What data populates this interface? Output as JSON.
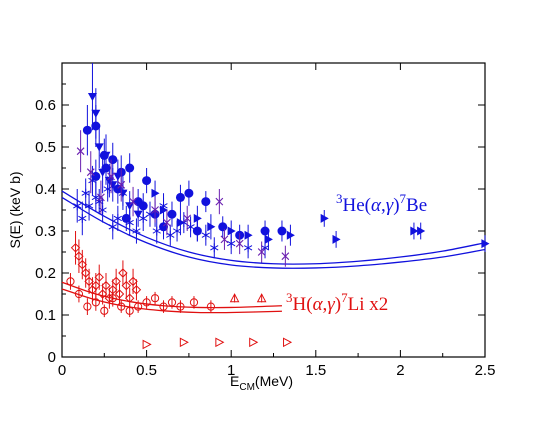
{
  "chart_data": {
    "type": "scatter",
    "xlabel_main": "E",
    "xlabel_sub": "CM",
    "xlabel_unit": "(MeV)",
    "ylabel": "S(E) (keV b)",
    "xlim": [
      0,
      2.5
    ],
    "ylim": [
      0,
      0.7
    ],
    "xticks": [
      "0",
      "0.5",
      "1",
      "1.5",
      "2",
      "2.5"
    ],
    "yticks": [
      "0",
      "0.1",
      "0.2",
      "0.3",
      "0.4",
      "0.5",
      "0.6"
    ],
    "grid": false,
    "colors": {
      "be7": "#1111dd",
      "li7": "#e01010",
      "be7_alt": "#6a1fb0"
    },
    "annotations": {
      "be7": {
        "sup1": "3",
        "pre": "He(",
        "alpha": "α",
        "comma": ",",
        "gamma": "γ",
        "close": ")",
        "sup2": "7",
        "post": "Be"
      },
      "li7": {
        "sup1": "3",
        "pre": "H(",
        "alpha": "α",
        "comma": ",",
        "gamma": "γ",
        "close": ")",
        "sup2": "7",
        "post": "Li  x2"
      }
    },
    "curves": [
      {
        "reaction": "be7",
        "x": [
          0,
          0.25,
          0.5,
          0.75,
          1.0,
          1.25,
          1.5,
          1.75,
          2.0,
          2.25,
          2.5
        ],
        "y": [
          0.395,
          0.335,
          0.285,
          0.25,
          0.23,
          0.222,
          0.222,
          0.228,
          0.238,
          0.252,
          0.272
        ]
      },
      {
        "reaction": "be7",
        "x": [
          0,
          0.25,
          0.5,
          0.75,
          1.0,
          1.25,
          1.5,
          1.75,
          2.0,
          2.25,
          2.5
        ],
        "y": [
          0.38,
          0.32,
          0.272,
          0.238,
          0.219,
          0.212,
          0.212,
          0.217,
          0.226,
          0.238,
          0.256
        ]
      },
      {
        "reaction": "li7",
        "x": [
          0.0,
          0.2,
          0.4,
          0.6,
          0.8,
          1.0,
          1.3
        ],
        "y": [
          0.178,
          0.15,
          0.132,
          0.122,
          0.118,
          0.118,
          0.122
        ]
      },
      {
        "reaction": "li7",
        "x": [
          0.0,
          0.2,
          0.4,
          0.6,
          0.8,
          1.0,
          1.3
        ],
        "y": [
          0.162,
          0.136,
          0.119,
          0.11,
          0.106,
          0.106,
          0.109
        ]
      }
    ],
    "series": [
      {
        "reaction": "be7",
        "marker": "circle-filled",
        "color": "#1111dd",
        "x": [
          0.15,
          0.2,
          0.25,
          0.3,
          0.35,
          0.4,
          0.45,
          0.5,
          0.55,
          0.6,
          0.65,
          0.7,
          0.75,
          0.8,
          0.85,
          0.95,
          1.05,
          1.2,
          1.3,
          0.2,
          0.26,
          0.33,
          0.38,
          0.48
        ],
        "y": [
          0.54,
          0.55,
          0.48,
          0.47,
          0.44,
          0.45,
          0.37,
          0.42,
          0.34,
          0.31,
          0.34,
          0.38,
          0.39,
          0.3,
          0.37,
          0.31,
          0.29,
          0.3,
          0.3,
          0.43,
          0.45,
          0.4,
          0.33,
          0.36
        ],
        "err": [
          0.06,
          0.05,
          0.04,
          0.04,
          0.04,
          0.035,
          0.03,
          0.03,
          0.03,
          0.03,
          0.03,
          0.03,
          0.03,
          0.025,
          0.025,
          0.025,
          0.025,
          0.025,
          0.025,
          0.04,
          0.04,
          0.035,
          0.03,
          0.03
        ]
      },
      {
        "reaction": "be7",
        "marker": "triangle-down",
        "color": "#1111dd",
        "x": [
          0.18,
          0.2,
          0.22,
          0.24,
          0.26,
          0.28,
          0.3,
          0.33,
          0.36,
          0.4,
          0.45
        ],
        "y": [
          0.62,
          0.58,
          0.5,
          0.44,
          0.48,
          0.42,
          0.41,
          0.43,
          0.39,
          0.36,
          0.34
        ],
        "err": [
          0.08,
          0.06,
          0.05,
          0.05,
          0.05,
          0.04,
          0.04,
          0.04,
          0.04,
          0.035,
          0.03
        ]
      },
      {
        "reaction": "be7",
        "marker": "triangle-right",
        "color": "#1111dd",
        "x": [
          0.55,
          0.6,
          0.7,
          0.8,
          0.88,
          1.0,
          1.1,
          1.22,
          1.35,
          1.55,
          1.62,
          2.08,
          2.12,
          2.5
        ],
        "y": [
          0.39,
          0.35,
          0.32,
          0.33,
          0.31,
          0.3,
          0.29,
          0.28,
          0.29,
          0.33,
          0.28,
          0.3,
          0.3,
          0.27
        ],
        "err": [
          0.03,
          0.03,
          0.03,
          0.03,
          0.03,
          0.025,
          0.025,
          0.025,
          0.025,
          0.02,
          0.02,
          0.02,
          0.02,
          0.02
        ]
      },
      {
        "reaction": "be7",
        "marker": "star",
        "color": "#1111dd",
        "x": [
          0.09,
          0.12,
          0.14,
          0.16,
          0.18,
          0.2,
          0.22,
          0.24,
          0.27,
          0.3,
          0.33,
          0.36,
          0.4,
          0.44,
          0.48,
          0.52,
          0.56,
          0.6,
          0.64,
          0.68,
          0.72,
          0.76,
          0.8,
          0.85,
          0.9,
          1.0,
          1.1,
          1.2
        ],
        "y": [
          0.36,
          0.33,
          0.39,
          0.36,
          0.42,
          0.38,
          0.37,
          0.35,
          0.4,
          0.31,
          0.33,
          0.39,
          0.32,
          0.3,
          0.33,
          0.34,
          0.3,
          0.36,
          0.29,
          0.3,
          0.32,
          0.31,
          0.3,
          0.29,
          0.26,
          0.27,
          0.26,
          0.26
        ],
        "err": [
          0.04,
          0.04,
          0.035,
          0.035,
          0.035,
          0.035,
          0.03,
          0.03,
          0.03,
          0.03,
          0.03,
          0.03,
          0.03,
          0.03,
          0.03,
          0.03,
          0.03,
          0.03,
          0.025,
          0.025,
          0.025,
          0.025,
          0.025,
          0.025,
          0.025,
          0.025,
          0.025,
          0.025
        ]
      },
      {
        "reaction": "be7",
        "marker": "cross",
        "color": "#6a1fb0",
        "x": [
          0.11,
          0.17,
          0.23,
          0.29,
          0.35,
          0.42,
          0.55,
          0.62,
          0.74,
          0.93,
          0.96,
          1.05,
          1.18,
          1.32
        ],
        "y": [
          0.49,
          0.44,
          0.38,
          0.43,
          0.41,
          0.37,
          0.35,
          0.32,
          0.33,
          0.37,
          0.28,
          0.27,
          0.25,
          0.24
        ],
        "err": [
          0.05,
          0.05,
          0.04,
          0.04,
          0.04,
          0.035,
          0.03,
          0.03,
          0.03,
          0.03,
          0.025,
          0.025,
          0.025,
          0.025
        ]
      },
      {
        "reaction": "li7",
        "marker": "diamond",
        "color": "#e01010",
        "x": [
          0.08,
          0.1,
          0.12,
          0.14,
          0.16,
          0.18,
          0.2,
          0.22,
          0.24,
          0.26,
          0.28,
          0.3,
          0.32,
          0.34,
          0.36,
          0.38,
          0.4,
          0.42,
          0.44
        ],
        "y": [
          0.26,
          0.24,
          0.22,
          0.2,
          0.18,
          0.16,
          0.17,
          0.19,
          0.15,
          0.17,
          0.14,
          0.16,
          0.18,
          0.15,
          0.2,
          0.17,
          0.14,
          0.18,
          0.16
        ],
        "err": [
          0.04,
          0.04,
          0.035,
          0.035,
          0.03,
          0.03,
          0.03,
          0.03,
          0.025,
          0.03,
          0.025,
          0.025,
          0.03,
          0.025,
          0.03,
          0.03,
          0.025,
          0.03,
          0.025
        ]
      },
      {
        "reaction": "li7",
        "marker": "circle-open",
        "color": "#e01010",
        "x": [
          0.05,
          0.1,
          0.15,
          0.2,
          0.25,
          0.3,
          0.35,
          0.4,
          0.45,
          0.5,
          0.55,
          0.6,
          0.65,
          0.7,
          0.78,
          0.88
        ],
        "y": [
          0.18,
          0.15,
          0.12,
          0.13,
          0.11,
          0.14,
          0.12,
          0.11,
          0.12,
          0.13,
          0.14,
          0.12,
          0.13,
          0.12,
          0.13,
          0.12
        ],
        "err": [
          0.02,
          0.02,
          0.02,
          0.02,
          0.015,
          0.02,
          0.015,
          0.015,
          0.015,
          0.015,
          0.015,
          0.015,
          0.015,
          0.015,
          0.015,
          0.015
        ]
      },
      {
        "reaction": "li7",
        "marker": "triangle-up-open",
        "color": "#e01010",
        "x": [
          1.02,
          1.18
        ],
        "y": [
          0.14,
          0.14
        ],
        "err": [
          0.01,
          0.01
        ]
      },
      {
        "reaction": "li7",
        "marker": "triangle-right-open",
        "color": "#e01010",
        "x": [
          0.5,
          0.72,
          0.93,
          1.13,
          1.33
        ],
        "y": [
          0.03,
          0.035,
          0.035,
          0.035,
          0.035
        ],
        "err": [
          0,
          0,
          0,
          0,
          0
        ]
      }
    ]
  }
}
